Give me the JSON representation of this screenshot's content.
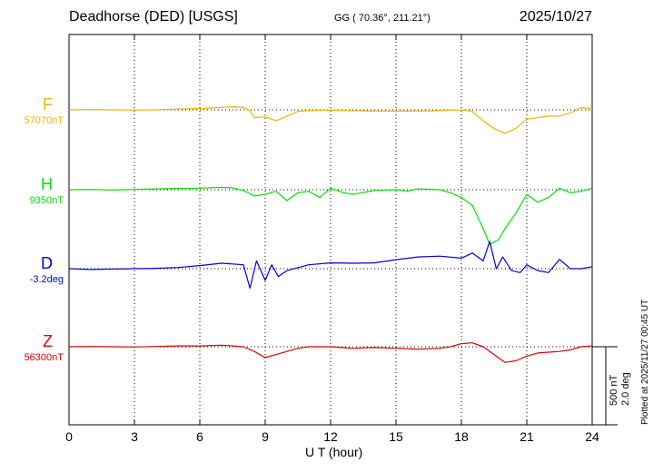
{
  "header": {
    "station": "Deadhorse (DED)  [USGS]",
    "coords": "GG ( 70.36°, 211.21°)",
    "date": "2025/10/27"
  },
  "plotted_note": "Plotted at 2025/11/27 00:45 UT",
  "scale": {
    "nt": "500 nT",
    "deg": "2.0 deg"
  },
  "chart_data": {
    "type": "line",
    "xlabel": "U T (hour)",
    "xlim": [
      0,
      24
    ],
    "x_ticks": [
      "0",
      "3",
      "6",
      "9",
      "12",
      "15",
      "18",
      "21",
      "24"
    ],
    "grid": true,
    "scale_bar": {
      "label_nt": "500 nT",
      "label_deg": "2.0 deg",
      "nt": 500,
      "deg": 2.0
    },
    "series": [
      {
        "name": "F",
        "baseline_label": "57070nT",
        "baseline": 57070,
        "unit": "nT",
        "color": "#f0b400",
        "x": [
          0,
          1,
          2,
          3,
          4,
          5,
          6,
          7,
          7.5,
          8,
          8.3,
          8.5,
          9,
          9.5,
          10,
          10.5,
          11,
          12,
          13,
          14,
          15,
          16,
          17,
          18,
          18.5,
          19,
          19.5,
          20,
          20.5,
          21,
          22,
          22.5,
          23,
          23.5,
          24
        ],
        "y": [
          57070,
          57072,
          57070,
          57068,
          57070,
          57075,
          57078,
          57085,
          57090,
          57085,
          57065,
          57020,
          57025,
          57000,
          57030,
          57060,
          57065,
          57068,
          57065,
          57062,
          57062,
          57062,
          57065,
          57070,
          57060,
          57000,
          56950,
          56920,
          56950,
          57010,
          57030,
          57030,
          57050,
          57085,
          57075
        ]
      },
      {
        "name": "H",
        "baseline_label": "9350nT",
        "baseline": 9350,
        "unit": "nT",
        "color": "#00e000",
        "x": [
          0,
          1,
          2,
          3,
          4,
          5,
          6,
          7,
          7.5,
          8,
          8.5,
          9,
          9.5,
          10,
          10.5,
          11,
          11.5,
          12,
          12.5,
          13,
          14,
          15,
          15.5,
          16,
          17,
          17.5,
          18,
          18.5,
          19,
          19.3,
          19.7,
          20,
          20.5,
          21,
          21.5,
          22,
          22.5,
          23,
          23.5,
          24
        ],
        "y": [
          9350,
          9352,
          9348,
          9352,
          9355,
          9358,
          9360,
          9365,
          9362,
          9345,
          9310,
          9320,
          9340,
          9280,
          9330,
          9340,
          9300,
          9360,
          9335,
          9320,
          9345,
          9350,
          9340,
          9355,
          9350,
          9330,
          9300,
          9250,
          9100,
          9000,
          9030,
          9100,
          9200,
          9320,
          9270,
          9300,
          9360,
          9330,
          9340,
          9360
        ]
      },
      {
        "name": "D",
        "baseline_label": "-3.2deg",
        "baseline": -3.2,
        "unit": "deg",
        "color": "#0000e0",
        "x": [
          0,
          1,
          2,
          3,
          4,
          5,
          6,
          7,
          8,
          8.3,
          8.6,
          9,
          9.3,
          9.6,
          10,
          11,
          12,
          13,
          14,
          15,
          16,
          17,
          18,
          18.5,
          19,
          19.3,
          19.6,
          19.9,
          20.3,
          20.7,
          21,
          21.5,
          22,
          22.5,
          23,
          23.5,
          24
        ],
        "y": [
          -3.2,
          -3.22,
          -3.21,
          -3.2,
          -3.19,
          -3.17,
          -3.12,
          -3.06,
          -3.1,
          -3.7,
          -3.0,
          -3.5,
          -3.1,
          -3.4,
          -3.25,
          -3.1,
          -3.05,
          -3.06,
          -3.05,
          -2.97,
          -2.9,
          -2.88,
          -2.93,
          -2.8,
          -3.0,
          -2.5,
          -3.2,
          -2.9,
          -3.25,
          -3.3,
          -3.1,
          -3.25,
          -3.3,
          -2.96,
          -3.2,
          -3.2,
          -3.15
        ]
      },
      {
        "name": "Z",
        "baseline_label": "56300nT",
        "baseline": 56300,
        "unit": "nT",
        "color": "#e00000",
        "x": [
          0,
          1,
          2,
          3,
          4,
          5,
          6,
          7,
          8,
          8.5,
          9,
          9.5,
          10,
          10.5,
          11,
          12,
          13,
          14,
          15,
          16,
          17,
          17.5,
          18,
          18.5,
          19,
          19.5,
          20,
          20.5,
          21,
          21.5,
          22,
          22.5,
          23,
          23.5,
          24
        ],
        "y": [
          56300,
          56302,
          56300,
          56298,
          56302,
          56305,
          56305,
          56310,
          56300,
          56270,
          56230,
          56250,
          56270,
          56290,
          56300,
          56300,
          56290,
          56295,
          56290,
          56285,
          56290,
          56300,
          56320,
          56325,
          56300,
          56250,
          56200,
          56210,
          56240,
          56260,
          56265,
          56270,
          56280,
          56300,
          56305
        ]
      }
    ]
  }
}
